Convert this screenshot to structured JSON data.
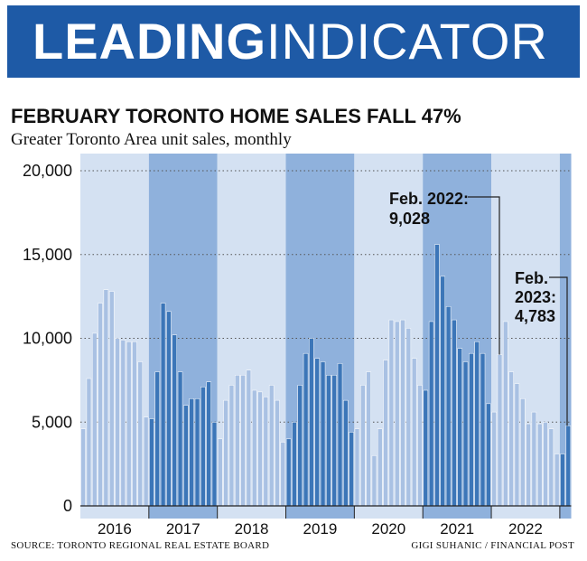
{
  "banner": {
    "part1": "LEADING",
    "part2": "INDICATOR"
  },
  "footer": {
    "source": "SOURCE: TORONTO REGIONAL REAL ESTATE BOARD",
    "credit": "GIGI SUHANIC / FINANCIAL POST"
  },
  "colors": {
    "banner": "#1e5aa6",
    "light_bar": "#a9c1e3",
    "dark_bar": "#3c76b8",
    "light_band": "#d4e1f2",
    "dark_band": "#8fb1dc"
  },
  "chart_data": {
    "type": "bar",
    "title": "FEBRUARY TORONTO HOME SALES FALL 47%",
    "subtitle": "Greater Toronto Area unit sales, monthly",
    "ylim": [
      0,
      20000
    ],
    "yticks": [
      0,
      5000,
      10000,
      15000,
      20000
    ],
    "ytick_labels": [
      "0",
      "5,000",
      "10,000",
      "15,000",
      "20,000"
    ],
    "grid": true,
    "categories": [
      "2016",
      "2017",
      "2018",
      "2019",
      "2020",
      "2021",
      "2022"
    ],
    "years": [
      {
        "year": "2016",
        "values": [
          4600,
          7600,
          10300,
          12100,
          12900,
          12800,
          10000,
          9900,
          9800,
          9800,
          8600,
          5300
        ]
      },
      {
        "year": "2017",
        "values": [
          5200,
          8000,
          12100,
          11600,
          10200,
          8000,
          6000,
          6400,
          6400,
          7100,
          7400,
          5000
        ]
      },
      {
        "year": "2018",
        "values": [
          4000,
          6300,
          7200,
          7800,
          7800,
          8100,
          6900,
          6800,
          6500,
          7200,
          6300,
          3800
        ]
      },
      {
        "year": "2019",
        "values": [
          4000,
          5000,
          7200,
          9100,
          10000,
          8800,
          8600,
          7800,
          7800,
          8500,
          6300,
          4400
        ]
      },
      {
        "year": "2020",
        "values": [
          4600,
          7200,
          8000,
          3000,
          4600,
          8700,
          11100,
          11000,
          11100,
          10600,
          8800,
          7200
        ]
      },
      {
        "year": "2021",
        "values": [
          6900,
          11000,
          15600,
          13700,
          11900,
          11100,
          9400,
          8600,
          9100,
          9800,
          9100,
          6100
        ]
      },
      {
        "year": "2022",
        "values": [
          5600,
          9028,
          11000,
          8000,
          7300,
          6400,
          4900,
          5600,
          4900,
          5000,
          4600,
          3100
        ]
      },
      {
        "year": "2023",
        "values": [
          3100,
          4783
        ]
      }
    ],
    "annotations": [
      {
        "lines": [
          "Feb. 2022:",
          "9,028"
        ],
        "value": 9028
      },
      {
        "lines": [
          "Feb.",
          "2023:",
          "4,783"
        ],
        "value": 4783
      }
    ]
  }
}
